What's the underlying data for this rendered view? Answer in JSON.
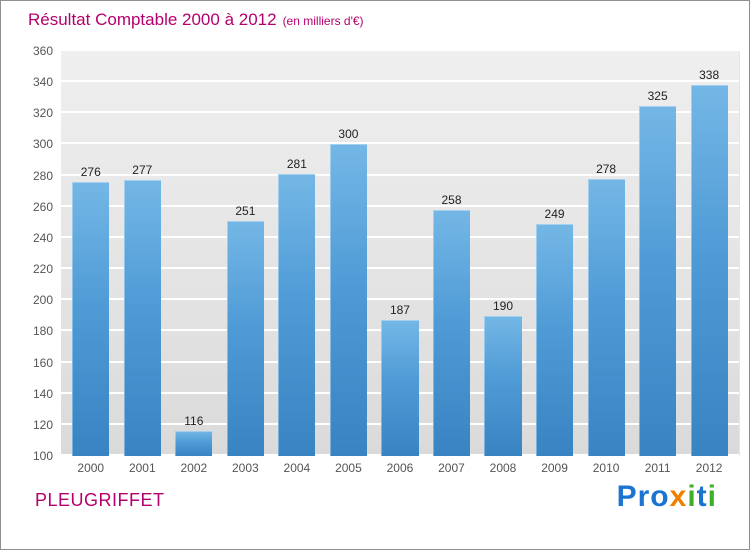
{
  "title": {
    "main": "Résultat Comptable 2000 à 2012",
    "sub": "(en milliers d'€)"
  },
  "chart_data": {
    "type": "bar",
    "title": "Résultat Comptable 2000 à 2012",
    "subtitle": "(en milliers d'€)",
    "categories": [
      "2000",
      "2001",
      "2002",
      "2003",
      "2004",
      "2005",
      "2006",
      "2007",
      "2008",
      "2009",
      "2010",
      "2011",
      "2012"
    ],
    "values": [
      276,
      277,
      116,
      251,
      281,
      300,
      187,
      258,
      190,
      249,
      278,
      325,
      338
    ],
    "ylim": [
      100,
      360
    ],
    "ytick": 20,
    "grid": true,
    "bar_color": "#4f9bd6",
    "background": "#e8e8e8"
  },
  "footer": {
    "company": "PLEUGRIFFET",
    "logo_letters": [
      {
        "ch": "P",
        "color": "#1b75d0"
      },
      {
        "ch": "r",
        "color": "#1b75d0"
      },
      {
        "ch": "o",
        "color": "#1b75d0"
      },
      {
        "ch": "x",
        "color": "#f07f00"
      },
      {
        "ch": "i",
        "color": "#3fae2a"
      },
      {
        "ch": "t",
        "color": "#1b75d0"
      },
      {
        "ch": "i",
        "color": "#3fae2a"
      }
    ]
  }
}
